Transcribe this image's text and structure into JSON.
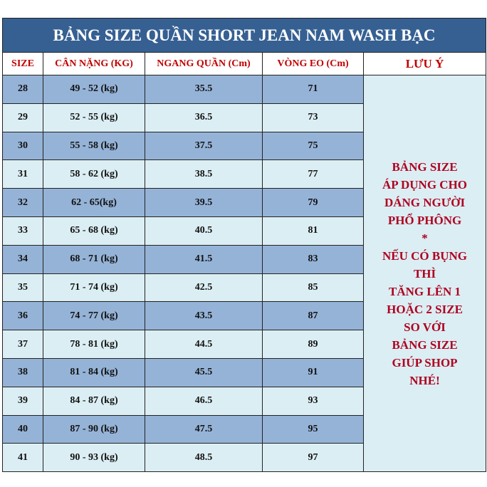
{
  "title": "BẢNG SIZE QUẦN SHORT JEAN NAM WASH BẠC",
  "headers": [
    "SIZE",
    "CÂN NẶNG (KG)",
    "NGANG QUẦN (Cm)",
    "VÒNG EO (Cm)",
    "LƯU Ý"
  ],
  "rows": [
    [
      "28",
      "49 - 52 (kg)",
      "35.5",
      "71"
    ],
    [
      "29",
      "52 - 55 (kg)",
      "36.5",
      "73"
    ],
    [
      "30",
      "55 - 58 (kg)",
      "37.5",
      "75"
    ],
    [
      "31",
      "58 - 62 (kg)",
      "38.5",
      "77"
    ],
    [
      "32",
      "62 - 65(kg)",
      "39.5",
      "79"
    ],
    [
      "33",
      "65 - 68 (kg)",
      "40.5",
      "81"
    ],
    [
      "34",
      "68 - 71 (kg)",
      "41.5",
      "83"
    ],
    [
      "35",
      "71 - 74 (kg)",
      "42.5",
      "85"
    ],
    [
      "36",
      "74 - 77 (kg)",
      "43.5",
      "87"
    ],
    [
      "37",
      "78 - 81 (kg)",
      "44.5",
      "89"
    ],
    [
      "38",
      "81 - 84 (kg)",
      "45.5",
      "91"
    ],
    [
      "39",
      "84 - 87 (kg)",
      "46.5",
      "93"
    ],
    [
      "40",
      "87 - 90 (kg)",
      "47.5",
      "95"
    ],
    [
      "41",
      "90 - 93 (kg)",
      "48.5",
      "97"
    ]
  ],
  "note_lines": [
    "BẢNG SIZE",
    "ÁP DỤNG CHO",
    "DÁNG NGƯỜI",
    "PHỔ PHÔNG",
    "*",
    "NẾU CÓ BỤNG",
    "THÌ",
    "TĂNG LÊN 1",
    "HOẶC 2 SIZE",
    "SO VỚI",
    "BẢNG SIZE",
    "GIÚP SHOP",
    "NHÉ!"
  ],
  "colors": {
    "title_bg": "#366092",
    "row_dark": "#95b3d7",
    "row_light": "#dbeef3",
    "header_text": "#c00000"
  }
}
